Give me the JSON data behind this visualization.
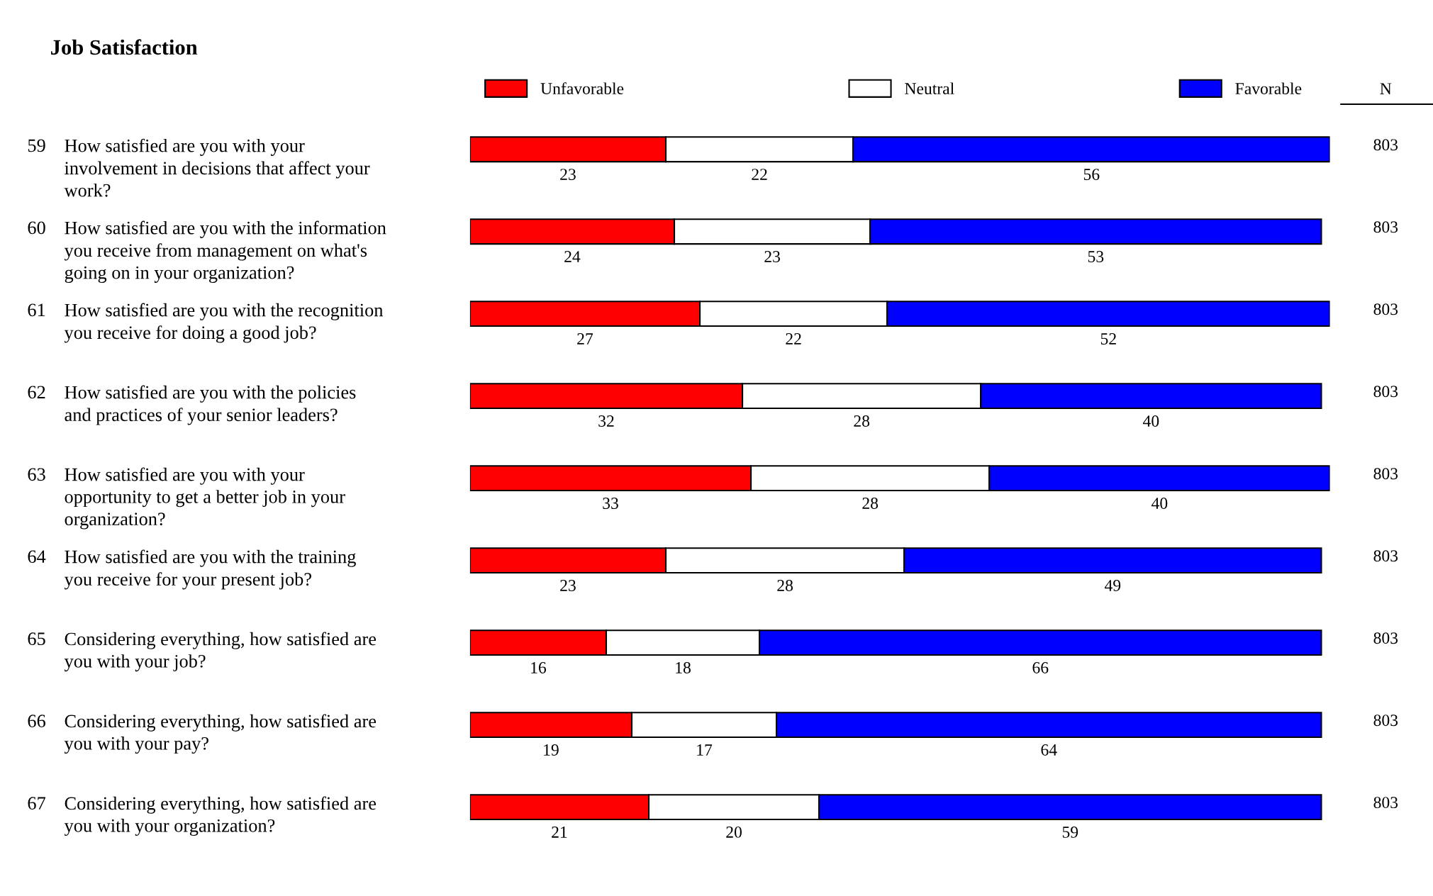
{
  "chart_data": {
    "type": "bar",
    "orientation": "horizontal",
    "stacked": true,
    "title": "Job Satisfaction",
    "categories": [
      "59 How satisfied are you with your\ninvolvement in decisions that affect your\nwork?",
      "60 How satisfied are you with the information\nyou receive from management on what's\ngoing on in your organization?",
      "61 How satisfied are you with the recognition\nyou receive for doing a good job?",
      "62 How satisfied are you with the policies\nand practices of your senior leaders?",
      "63 How satisfied are you with your\nopportunity to get a better job in your\norganization?",
      "64 How satisfied are you with the training\nyou receive for your present job?",
      "65 Considering everything, how satisfied are\nyou with your job?",
      "66 Considering everything, how satisfied are\nyou with your pay?",
      "67 Considering everything, how satisfied are\nyou with your organization?"
    ],
    "series": [
      {
        "name": "Unfavorable",
        "color": "#ff0000",
        "values": [
          23,
          24,
          27,
          32,
          33,
          23,
          16,
          19,
          21
        ]
      },
      {
        "name": "Neutral",
        "color": "#ffffff",
        "values": [
          22,
          23,
          22,
          28,
          28,
          28,
          18,
          17,
          20
        ]
      },
      {
        "name": "Favorable",
        "color": "#0000ff",
        "values": [
          56,
          53,
          52,
          40,
          40,
          49,
          66,
          64,
          59
        ]
      }
    ],
    "data_labels": true,
    "legend": "top",
    "annotations": [
      "N",
      "803",
      "803",
      "803",
      "803",
      "803",
      "803",
      "803",
      "803",
      "803"
    ]
  }
}
